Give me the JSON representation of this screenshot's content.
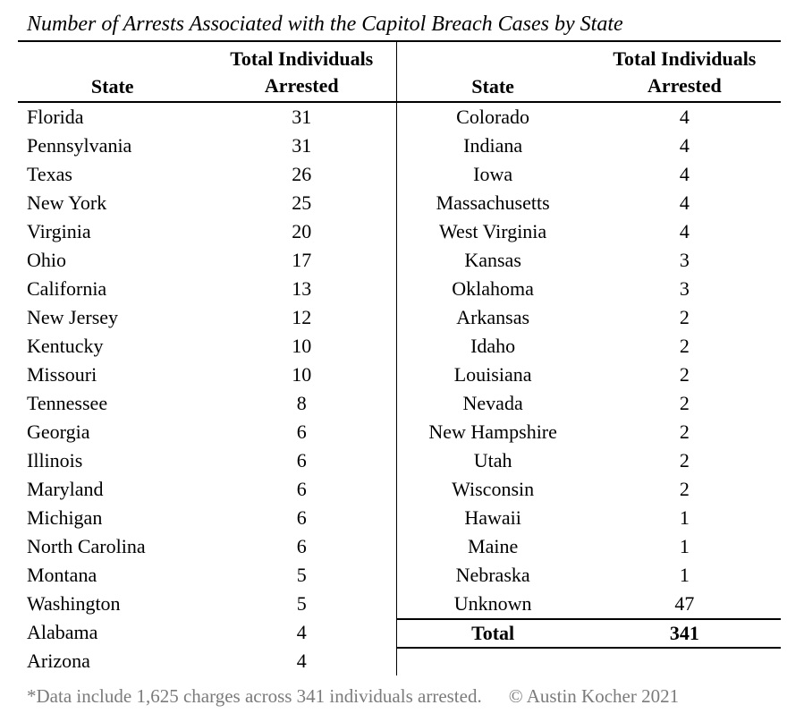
{
  "page": {
    "background": "#ffffff",
    "text_color": "#000000",
    "rule_color": "#000000",
    "footnote_color": "#7b7b7b"
  },
  "title": "Number of Arrests Associated with the Capitol Breach Cases by State",
  "header": {
    "state": "State",
    "count_line1": "Total Individuals",
    "count_line2": "Arrested"
  },
  "table": {
    "left_rows": [
      {
        "state": "Florida",
        "arrested": "31"
      },
      {
        "state": "Pennsylvania",
        "arrested": "31"
      },
      {
        "state": "Texas",
        "arrested": "26"
      },
      {
        "state": "New York",
        "arrested": "25"
      },
      {
        "state": "Virginia",
        "arrested": "20"
      },
      {
        "state": "Ohio",
        "arrested": "17"
      },
      {
        "state": "California",
        "arrested": "13"
      },
      {
        "state": "New Jersey",
        "arrested": "12"
      },
      {
        "state": "Kentucky",
        "arrested": "10"
      },
      {
        "state": "Missouri",
        "arrested": "10"
      },
      {
        "state": "Tennessee",
        "arrested": "8"
      },
      {
        "state": "Georgia",
        "arrested": "6"
      },
      {
        "state": "Illinois",
        "arrested": "6"
      },
      {
        "state": "Maryland",
        "arrested": "6"
      },
      {
        "state": "Michigan",
        "arrested": "6"
      },
      {
        "state": "North Carolina",
        "arrested": "6"
      },
      {
        "state": "Montana",
        "arrested": "5"
      },
      {
        "state": "Washington",
        "arrested": "5"
      },
      {
        "state": "Alabama",
        "arrested": "4"
      },
      {
        "state": "Arizona",
        "arrested": "4"
      }
    ],
    "right_rows": [
      {
        "state": "Colorado",
        "arrested": "4"
      },
      {
        "state": "Indiana",
        "arrested": "4"
      },
      {
        "state": "Iowa",
        "arrested": "4"
      },
      {
        "state": "Massachusetts",
        "arrested": "4"
      },
      {
        "state": "West Virginia",
        "arrested": "4"
      },
      {
        "state": "Kansas",
        "arrested": "3"
      },
      {
        "state": "Oklahoma",
        "arrested": "3"
      },
      {
        "state": "Arkansas",
        "arrested": "2"
      },
      {
        "state": "Idaho",
        "arrested": "2"
      },
      {
        "state": "Louisiana",
        "arrested": "2"
      },
      {
        "state": "Nevada",
        "arrested": "2"
      },
      {
        "state": "New Hampshire",
        "arrested": "2"
      },
      {
        "state": "Utah",
        "arrested": "2"
      },
      {
        "state": "Wisconsin",
        "arrested": "2"
      },
      {
        "state": "Hawaii",
        "arrested": "1"
      },
      {
        "state": "Maine",
        "arrested": "1"
      },
      {
        "state": "Nebraska",
        "arrested": "1"
      },
      {
        "state": "Unknown",
        "arrested": "47"
      }
    ],
    "total_label": "Total",
    "total_value": "341"
  },
  "footnote": "*Data include 1,625 charges across 341 individuals arrested.",
  "credit": "© Austin Kocher 2021"
}
